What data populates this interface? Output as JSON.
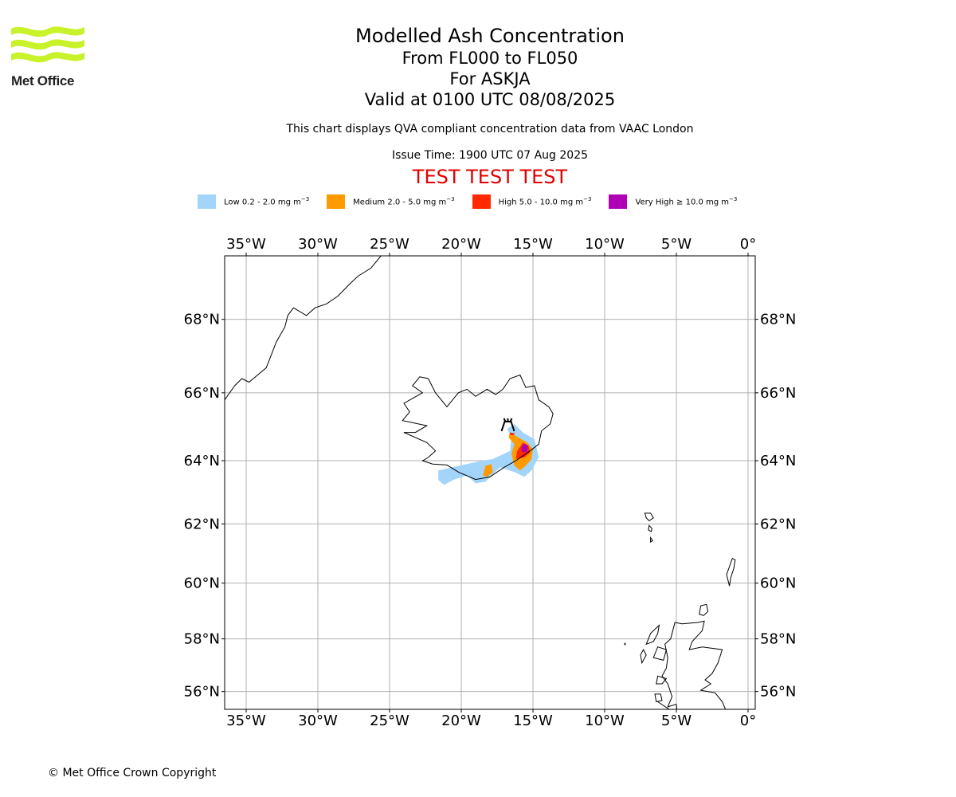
{
  "header": {
    "logo_text": "Met Office",
    "title": "Modelled Ash Concentration",
    "level_range": "From FL000 to FL050",
    "volcano_line": "For ASKJA",
    "valid_time": "Valid at 0100 UTC 08/08/2025",
    "info": "This chart displays QVA compliant concentration data from VAAC London",
    "issue_time": "Issue Time: 1900 UTC 07 Aug 2025",
    "test_banner": "TEST TEST TEST"
  },
  "legend": [
    {
      "label": "Low 0.2 - 2.0 mg m",
      "color": "#a3d4fa"
    },
    {
      "label": "Medium 2.0 - 5.0 mg m",
      "color": "#ff9a00"
    },
    {
      "label": "High 5.0 - 10.0 mg m",
      "color": "#ff2a00"
    },
    {
      "label": "Very High ≥ 10.0 mg m",
      "color": "#b000b5"
    }
  ],
  "legend_unit_exponent": "−3",
  "map": {
    "lon_range": [
      -36.5,
      0.5
    ],
    "lat_range": [
      55.3,
      69.6
    ],
    "lon_ticks": [
      "35°W",
      "30°W",
      "25°W",
      "20°W",
      "15°W",
      "10°W",
      "5°W",
      "0°"
    ],
    "lat_ticks": [
      "68°N",
      "66°N",
      "64°N",
      "62°N",
      "60°N",
      "58°N",
      "56°N"
    ],
    "volcano_symbol": "volcano-icon",
    "volcano_name": "ASKJA"
  },
  "footer": {
    "copyright": "© Met Office Crown Copyright"
  }
}
